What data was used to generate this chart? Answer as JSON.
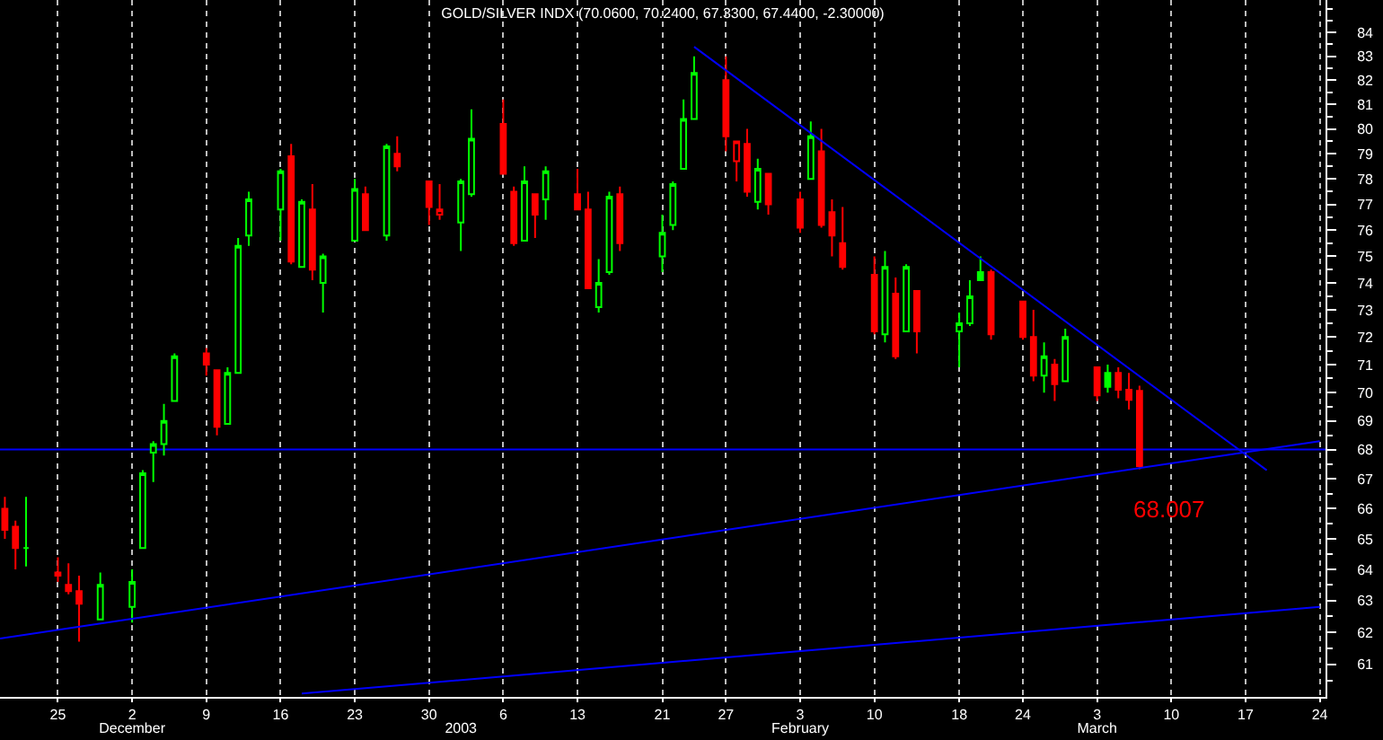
{
  "chart_data": {
    "type": "candlestick",
    "title": "GOLD/SILVER INDX (70.0600, 70.2400, 67.3300, 67.4400, -2.30000)",
    "x": [
      "2002-11-20",
      "2002-11-21",
      "2002-11-22",
      "2002-11-25",
      "2002-11-26",
      "2002-11-27",
      "2002-11-29",
      "2002-12-02",
      "2002-12-03",
      "2002-12-04",
      "2002-12-05",
      "2002-12-06",
      "2002-12-09",
      "2002-12-10",
      "2002-12-11",
      "2002-12-12",
      "2002-12-13",
      "2002-12-16",
      "2002-12-17",
      "2002-12-18",
      "2002-12-19",
      "2002-12-20",
      "2002-12-23",
      "2002-12-24",
      "2002-12-26",
      "2002-12-27",
      "2002-12-30",
      "2002-12-31",
      "2003-01-02",
      "2003-01-03",
      "2003-01-06",
      "2003-01-07",
      "2003-01-08",
      "2003-01-09",
      "2003-01-10",
      "2003-01-13",
      "2003-01-14",
      "2003-01-15",
      "2003-01-16",
      "2003-01-17",
      "2003-01-21",
      "2003-01-22",
      "2003-01-23",
      "2003-01-24",
      "2003-01-27",
      "2003-01-28",
      "2003-01-29",
      "2003-01-30",
      "2003-01-31",
      "2003-02-03",
      "2003-02-04",
      "2003-02-05",
      "2003-02-06",
      "2003-02-07",
      "2003-02-10",
      "2003-02-11",
      "2003-02-12",
      "2003-02-13",
      "2003-02-14",
      "2003-02-18",
      "2003-02-19",
      "2003-02-20",
      "2003-02-21",
      "2003-02-24",
      "2003-02-25",
      "2003-02-26",
      "2003-02-27",
      "2003-02-28",
      "2003-03-03",
      "2003-03-04",
      "2003-03-05",
      "2003-03-06",
      "2003-03-07"
    ],
    "ohlc": [
      [
        66.0,
        66.4,
        65.0,
        65.3
      ],
      [
        65.4,
        65.6,
        64.0,
        64.7
      ],
      [
        64.7,
        66.4,
        64.1,
        64.7
      ],
      [
        63.9,
        64.4,
        63.6,
        63.8
      ],
      [
        63.5,
        64.2,
        63.2,
        63.3
      ],
      [
        63.3,
        63.8,
        61.7,
        62.9
      ],
      [
        62.4,
        63.9,
        62.4,
        63.5
      ],
      [
        62.8,
        64.0,
        62.3,
        63.6
      ],
      [
        64.7,
        67.3,
        64.7,
        67.2
      ],
      [
        67.9,
        68.3,
        66.9,
        68.2
      ],
      [
        68.2,
        69.6,
        67.8,
        69.0
      ],
      [
        69.7,
        71.4,
        69.7,
        71.3
      ],
      [
        71.4,
        71.6,
        70.6,
        71.0
      ],
      [
        70.8,
        70.8,
        68.5,
        68.8
      ],
      [
        68.9,
        70.9,
        68.9,
        70.7
      ],
      [
        70.7,
        75.7,
        70.7,
        75.4
      ],
      [
        75.8,
        77.5,
        75.4,
        77.2
      ],
      [
        76.8,
        78.4,
        75.6,
        78.3
      ],
      [
        78.9,
        79.4,
        74.7,
        74.8
      ],
      [
        74.6,
        77.2,
        74.6,
        77.1
      ],
      [
        76.8,
        77.8,
        74.1,
        74.5
      ],
      [
        74.0,
        75.1,
        72.9,
        75.0
      ],
      [
        75.6,
        78.0,
        75.6,
        77.6
      ],
      [
        77.4,
        77.7,
        76.0,
        76.0
      ],
      [
        75.8,
        79.4,
        75.6,
        79.3
      ],
      [
        79.0,
        79.7,
        78.3,
        78.5
      ],
      [
        77.9,
        77.9,
        76.2,
        76.9
      ],
      [
        76.6,
        77.8,
        76.4,
        76.8
      ],
      [
        76.3,
        78.0,
        75.2,
        77.9
      ],
      [
        77.4,
        80.8,
        77.3,
        79.6
      ],
      [
        80.2,
        81.2,
        78.2,
        78.2
      ],
      [
        77.5,
        77.7,
        75.4,
        75.5
      ],
      [
        75.6,
        78.5,
        75.6,
        77.9
      ],
      [
        77.4,
        77.4,
        75.7,
        76.6
      ],
      [
        77.2,
        78.5,
        76.4,
        78.3
      ],
      [
        77.4,
        78.4,
        76.8,
        76.8
      ],
      [
        76.8,
        77.5,
        73.8,
        73.8
      ],
      [
        73.1,
        74.9,
        72.9,
        74.0
      ],
      [
        74.4,
        77.5,
        74.3,
        77.3
      ],
      [
        77.4,
        77.7,
        75.2,
        75.5
      ],
      [
        75.0,
        76.6,
        74.4,
        75.9
      ],
      [
        76.2,
        77.9,
        76.0,
        77.8
      ],
      [
        78.4,
        81.2,
        78.4,
        80.4
      ],
      [
        80.4,
        83.0,
        80.4,
        82.3
      ],
      [
        82.0,
        83.0,
        79.1,
        79.7
      ],
      [
        78.7,
        79.5,
        77.9,
        79.5
      ],
      [
        79.4,
        80.0,
        77.3,
        77.5
      ],
      [
        77.1,
        78.8,
        76.8,
        78.4
      ],
      [
        78.2,
        78.2,
        76.6,
        77.0
      ],
      [
        77.2,
        77.5,
        75.9,
        76.1
      ],
      [
        78.0,
        80.3,
        78.0,
        79.7
      ],
      [
        79.1,
        80.0,
        76.1,
        76.2
      ],
      [
        76.7,
        77.2,
        75.0,
        75.8
      ],
      [
        75.5,
        76.9,
        74.5,
        74.6
      ],
      [
        74.3,
        75.0,
        72.1,
        72.2
      ],
      [
        72.1,
        75.2,
        71.8,
        74.6
      ],
      [
        73.6,
        74.2,
        71.2,
        71.3
      ],
      [
        72.2,
        74.7,
        72.2,
        74.6
      ],
      [
        73.7,
        73.7,
        71.4,
        72.2
      ],
      [
        72.2,
        72.9,
        70.9,
        72.5
      ],
      [
        72.5,
        74.1,
        72.4,
        73.5
      ],
      [
        74.4,
        75.0,
        74.1,
        74.1
      ],
      [
        74.4,
        74.5,
        71.9,
        72.1
      ],
      [
        73.3,
        73.3,
        71.9,
        72.0
      ],
      [
        72.0,
        73.0,
        70.4,
        70.6
      ],
      [
        70.6,
        71.8,
        70.0,
        71.3
      ],
      [
        71.0,
        71.2,
        69.7,
        70.3
      ],
      [
        70.4,
        72.3,
        70.4,
        72.0
      ],
      [
        70.9,
        70.9,
        69.7,
        69.9
      ],
      [
        70.7,
        71.0,
        70.0,
        70.2
      ],
      [
        70.7,
        70.9,
        69.8,
        70.1
      ],
      [
        70.1,
        70.7,
        69.4,
        69.74
      ],
      [
        70.06,
        70.24,
        67.33,
        67.44
      ]
    ],
    "colors": [
      "#ff0000",
      "#ff0000",
      "#00ff00",
      "#ff0000",
      "#ff0000",
      "#ff0000",
      "#00ff00",
      "#00ff00",
      "#00ff00",
      "#00ff00",
      "#00ff00",
      "#00ff00",
      "#ff0000",
      "#ff0000",
      "#00ff00",
      "#00ff00",
      "#00ff00",
      "#00ff00",
      "#ff0000",
      "#00ff00",
      "#ff0000",
      "#00ff00",
      "#00ff00",
      "#ff0000",
      "#00ff00",
      "#ff0000",
      "#ff0000",
      "#ff0000",
      "#00ff00",
      "#00ff00",
      "#ff0000",
      "#ff0000",
      "#00ff00",
      "#ff0000",
      "#00ff00",
      "#ff0000",
      "#ff0000",
      "#00ff00",
      "#00ff00",
      "#ff0000",
      "#00ff00",
      "#00ff00",
      "#00ff00",
      "#00ff00",
      "#ff0000",
      "#ff0000",
      "#ff0000",
      "#00ff00",
      "#ff0000",
      "#ff0000",
      "#00ff00",
      "#ff0000",
      "#ff0000",
      "#ff0000",
      "#ff0000",
      "#00ff00",
      "#ff0000",
      "#00ff00",
      "#ff0000",
      "#00ff00",
      "#00ff00",
      "#00ff00",
      "#ff0000",
      "#ff0000",
      "#ff0000",
      "#00ff00",
      "#ff0000",
      "#00ff00",
      "#ff0000",
      "#00ff00",
      "#ff0000",
      "#ff0000",
      "#ff0000"
    ],
    "series": [
      {
        "type": "line",
        "color": "#0000ff",
        "x": [
          "2003-01-24",
          "2003-03-19"
        ],
        "values": [
          83.4,
          67.3
        ]
      },
      {
        "type": "line",
        "color": "#0000ff",
        "x": [
          "2002-11-19T13:00",
          "2003-03-24"
        ],
        "values": [
          61.8,
          68.3
        ]
      },
      {
        "type": "line",
        "color": "#0000ff",
        "x": [
          "2002-12-18",
          "2003-03-24"
        ],
        "values": [
          60.1,
          62.8
        ]
      }
    ],
    "ref_lines": [
      {
        "axis": "y",
        "value": 68.007,
        "label": "68.007",
        "color": "#0000ff"
      }
    ],
    "xlim": [
      "2002-11-19T13:00",
      "2003-03-24T13:00"
    ],
    "xticks": [
      {
        "value": "2002-11-25",
        "label": "25"
      },
      {
        "value": "2002-12-02",
        "label": "2"
      },
      {
        "value": "2002-12-09",
        "label": "9"
      },
      {
        "value": "2002-12-16",
        "label": "16"
      },
      {
        "value": "2002-12-23",
        "label": "23"
      },
      {
        "value": "2002-12-30",
        "label": "30"
      },
      {
        "value": "2003-01-06",
        "label": "6"
      },
      {
        "value": "2003-01-13",
        "label": "13"
      },
      {
        "value": "2003-01-21",
        "label": "21"
      },
      {
        "value": "2003-01-27",
        "label": "27"
      },
      {
        "value": "2003-02-03",
        "label": "3"
      },
      {
        "value": "2003-02-10",
        "label": "10"
      },
      {
        "value": "2003-02-18",
        "label": "18"
      },
      {
        "value": "2003-02-24",
        "label": "24"
      },
      {
        "value": "2003-03-03",
        "label": "3"
      },
      {
        "value": "2003-03-10",
        "label": "10"
      },
      {
        "value": "2003-03-17",
        "label": "17"
      },
      {
        "value": "2003-03-24",
        "label": "24"
      }
    ],
    "x2lim": [
      "2002-11-19T13:00",
      "2003-03-24T13:00"
    ],
    "x2ticks": [
      {
        "value": "2002-12-02",
        "label": "December"
      },
      {
        "value": "2003-01-02",
        "label": "2003"
      },
      {
        "value": "2003-02-03",
        "label": "February"
      },
      {
        "value": "2003-03-03",
        "label": "March"
      }
    ],
    "ylim": [
      60,
      85.4
    ],
    "yticks": [
      {
        "value": 60.5,
        "label": null
      },
      61,
      {
        "value": 61.5,
        "label": null
      },
      62,
      {
        "value": 62.5,
        "label": null
      },
      63,
      {
        "value": 63.5,
        "label": null
      },
      64,
      {
        "value": 64.5,
        "label": null
      },
      65,
      {
        "value": 65.5,
        "label": null
      },
      66,
      {
        "value": 66.5,
        "label": null
      },
      67,
      {
        "value": 67.5,
        "label": null
      },
      68,
      {
        "value": 68.5,
        "label": null
      },
      69,
      {
        "value": 69.5,
        "label": null
      },
      70,
      {
        "value": 70.5,
        "label": null
      },
      71,
      {
        "value": 71.5,
        "label": null
      },
      72,
      {
        "value": 72.5,
        "label": null
      },
      73,
      {
        "value": 73.5,
        "label": null
      },
      74,
      {
        "value": 74.5,
        "label": null
      },
      75,
      {
        "value": 75.5,
        "label": null
      },
      76,
      {
        "value": 76.5,
        "label": null
      },
      77,
      {
        "value": 77.5,
        "label": null
      },
      78,
      {
        "value": 78.5,
        "label": null
      },
      79,
      {
        "value": 79.5,
        "label": null
      },
      80,
      {
        "value": 80.5,
        "label": null
      },
      81,
      {
        "value": 81.5,
        "label": null
      },
      82,
      {
        "value": 82.5,
        "label": null
      },
      83,
      {
        "value": 83.5,
        "label": null
      },
      84,
      {
        "value": 84.5,
        "label": null
      },
      {
        "value": 85,
        "label": null
      }
    ],
    "log": true,
    "grid": "x"
  }
}
